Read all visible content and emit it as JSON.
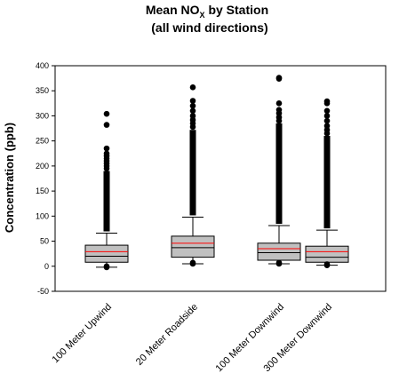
{
  "chart_data": {
    "type": "box",
    "title_prefix": "Mean NO",
    "title_subscript": "X",
    "title_suffix": " by Station",
    "subtitle": "(all wind directions)",
    "xlabel": "",
    "ylabel": "Concentration (ppb)",
    "ylim": [
      -50,
      400
    ],
    "yticks": [
      -50,
      0,
      50,
      100,
      150,
      200,
      250,
      300,
      350,
      400
    ],
    "grid": false,
    "legend": "none",
    "colors": {
      "box_fill": "#c0c0c0",
      "mean_line": "#ff0000",
      "median_line": "#000000",
      "outlier": "#000000"
    },
    "categories": [
      "100 Meter Upwind",
      "20 Meter Roadside",
      "100 Meter Downwind",
      "300 Meter Downwind"
    ],
    "boxes": [
      {
        "category": "100 Meter Upwind",
        "whisker_low": -2,
        "q1": 8,
        "median": 20,
        "mean": 29,
        "q3": 42,
        "whisker_high": 66,
        "outliers_dense_to": 190,
        "outliers": [
          195,
          200,
          205,
          210,
          215,
          220,
          225,
          235,
          282,
          304
        ],
        "low_outliers": [
          -2,
          0
        ]
      },
      {
        "category": "20 Meter Roadside",
        "whisker_low": 5,
        "q1": 18,
        "median": 37,
        "mean": 46,
        "q3": 60,
        "whisker_high": 98,
        "outliers_dense_to": 272,
        "outliers": [
          278,
          285,
          292,
          300,
          310,
          320,
          330,
          357
        ],
        "low_outliers": [
          5,
          7
        ]
      },
      {
        "category": "100 Meter Downwind",
        "whisker_low": 5,
        "q1": 12,
        "median": 27,
        "mean": 35,
        "q3": 46,
        "whisker_high": 81,
        "outliers_dense_to": 285,
        "outliers": [
          290,
          297,
          305,
          312,
          325,
          374,
          376
        ],
        "low_outliers": [
          5,
          7
        ]
      },
      {
        "category": "300 Meter Downwind",
        "whisker_low": 2,
        "q1": 8,
        "median": 18,
        "mean": 29,
        "q3": 40,
        "whisker_high": 72,
        "outliers_dense_to": 260,
        "outliers": [
          265,
          272,
          280,
          290,
          300,
          310,
          325,
          329
        ],
        "low_outliers": [
          2,
          4
        ]
      }
    ]
  }
}
